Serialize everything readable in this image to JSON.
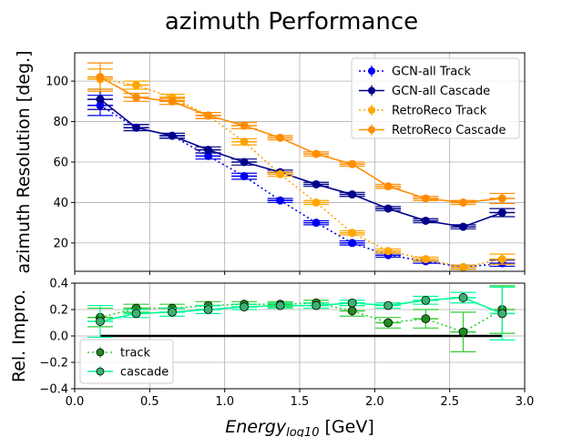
{
  "chart_data": {
    "type": "line",
    "title": "azimuth Performance",
    "xlabel_main": "Energy",
    "xlabel_sub": "log10",
    "xlabel_unit": " [GeV]",
    "xlim": [
      0.0,
      3.0
    ],
    "x_ticks": [
      "0.0",
      "0.5",
      "1.0",
      "1.5",
      "2.0",
      "2.5",
      "3.0"
    ],
    "x_tick_values": [
      0.0,
      0.5,
      1.0,
      1.5,
      2.0,
      2.5,
      3.0
    ],
    "grid": true,
    "x": [
      0.17,
      0.41,
      0.65,
      0.89,
      1.13,
      1.37,
      1.61,
      1.85,
      2.09,
      2.34,
      2.59,
      2.85
    ],
    "top_panel": {
      "ylabel": "azimuth Resolution [deg.]",
      "ylim": [
        6,
        114
      ],
      "y_ticks": [
        "20",
        "40",
        "60",
        "80",
        "100"
      ],
      "y_tick_values": [
        20,
        40,
        60,
        80,
        100
      ],
      "legend_position": "top-right",
      "series": [
        {
          "name": "GCN-all Track",
          "color": "#0000ee",
          "linestyle": "dotted",
          "values": [
            88,
            77,
            73,
            63,
            53,
            41,
            30,
            20,
            14,
            11,
            8,
            10
          ],
          "errors": [
            5,
            1.5,
            1.2,
            1.5,
            1.5,
            1,
            1,
            1,
            1,
            1,
            1,
            1.5
          ]
        },
        {
          "name": "GCN-all Cascade",
          "color": "#00008b",
          "linestyle": "solid",
          "values": [
            91,
            77,
            73,
            66,
            60,
            55,
            49,
            44,
            37,
            31,
            28,
            35
          ],
          "errors": [
            5,
            1.5,
            1.2,
            1.5,
            1.5,
            1,
            1,
            1,
            1,
            1,
            1,
            2
          ]
        },
        {
          "name": "RetroReco Track",
          "color": "#ffa500",
          "linestyle": "dotted",
          "values": [
            101,
            98,
            92,
            83,
            70,
            54,
            40,
            25,
            16,
            12,
            8,
            12
          ],
          "errors": [
            5,
            2,
            1.5,
            1.5,
            1.5,
            1,
            1,
            1,
            1,
            1,
            1,
            2.5
          ]
        },
        {
          "name": "RetroReco Cascade",
          "color": "#ff8c00",
          "linestyle": "solid",
          "values": [
            102,
            92,
            90,
            83,
            78,
            72,
            64,
            59,
            48,
            42,
            40,
            42
          ],
          "errors": [
            7,
            2,
            1.5,
            1.5,
            1.5,
            1,
            1,
            1,
            1,
            1,
            1,
            2.5
          ]
        }
      ]
    },
    "bottom_panel": {
      "ylabel": "Rel. Impro.",
      "ylim": [
        -0.4,
        0.4
      ],
      "y_ticks": [
        "−0.4",
        "−0.2",
        "0.0",
        "0.2",
        "0.4"
      ],
      "y_tick_values": [
        -0.4,
        -0.2,
        0.0,
        0.2,
        0.4
      ],
      "legend_position": "bottom-left",
      "zero_line_range": [
        0.17,
        2.85
      ],
      "series": [
        {
          "name": "track",
          "color": "#32cd32",
          "marker_color": "#228b22",
          "linestyle": "dotted",
          "values": [
            0.14,
            0.21,
            0.21,
            0.23,
            0.24,
            0.24,
            0.25,
            0.19,
            0.1,
            0.13,
            0.03,
            0.2
          ],
          "errors": [
            0.07,
            0.03,
            0.03,
            0.03,
            0.02,
            0.02,
            0.02,
            0.04,
            0.04,
            0.07,
            0.15,
            0.18
          ]
        },
        {
          "name": "cascade",
          "color": "#00fa9a",
          "marker_color": "#3cb371",
          "linestyle": "solid",
          "values": [
            0.11,
            0.17,
            0.18,
            0.2,
            0.22,
            0.23,
            0.23,
            0.25,
            0.23,
            0.27,
            0.29,
            0.17
          ],
          "errors": [
            0.12,
            0.03,
            0.03,
            0.03,
            0.02,
            0.02,
            0.02,
            0.02,
            0.02,
            0.03,
            0.04,
            0.2
          ]
        }
      ]
    }
  }
}
